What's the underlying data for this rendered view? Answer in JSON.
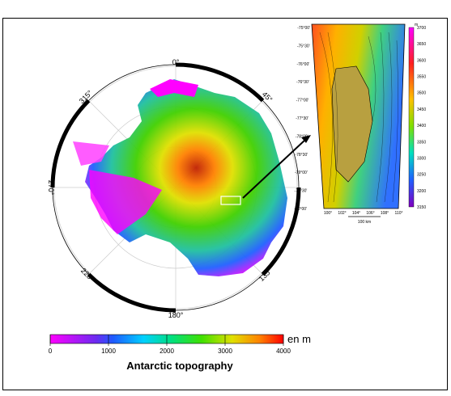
{
  "map": {
    "graticule_labels": [
      "0°",
      "45°",
      "135°",
      "180°",
      "225°",
      "270°",
      "315°"
    ],
    "colorbar": {
      "ticks": [
        "0",
        "1000",
        "2000",
        "3000",
        "4000"
      ],
      "unit": "en m"
    },
    "title": "Antarctic topography"
  },
  "inset": {
    "lat_labels": [
      "-75°00'",
      "-75°30'",
      "-76°00'",
      "-76°30'",
      "-77°00'",
      "-77°30'",
      "-78°00'",
      "-78°30'",
      "-79°00'",
      "-79°30'",
      "-80°00'"
    ],
    "lon_labels": [
      "100°",
      "102°",
      "104°",
      "106°",
      "108°",
      "110°"
    ],
    "colorbar": {
      "unit": "m",
      "ticks": [
        "3700",
        "3650",
        "3600",
        "3550",
        "3500",
        "3450",
        "3400",
        "3350",
        "3300",
        "3250",
        "3200",
        "3150"
      ]
    },
    "scale_label": "100 km"
  }
}
